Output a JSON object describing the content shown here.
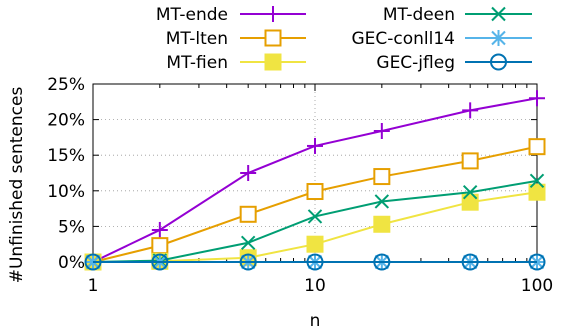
{
  "chart_data": {
    "type": "line",
    "title": "",
    "xlabel": "n",
    "ylabel": "#Unfinished sentences",
    "xscale": "log",
    "xlim": [
      1,
      100
    ],
    "ylim": [
      0,
      25
    ],
    "x_ticks": [
      1,
      10,
      100
    ],
    "x_tick_labels": [
      "1",
      "10",
      "100"
    ],
    "y_ticks": [
      0,
      5,
      10,
      15,
      20,
      25
    ],
    "y_tick_labels": [
      "0%",
      "5%",
      "10%",
      "15%",
      "20%",
      "25%"
    ],
    "grid": true,
    "legend_position": "top, above plot, two columns",
    "x": [
      1,
      2,
      5,
      10,
      20,
      50,
      100
    ],
    "series": [
      {
        "name": "MT-ende",
        "color": "#9400d3",
        "marker": "plus",
        "values": [
          0,
          4.5,
          12.5,
          16.3,
          18.4,
          21.3,
          23.0
        ]
      },
      {
        "name": "MT-lten",
        "color": "#e69f00",
        "marker": "open-square",
        "values": [
          0,
          2.3,
          6.7,
          9.9,
          12.0,
          14.2,
          16.2
        ]
      },
      {
        "name": "MT-fien",
        "color": "#f0e442",
        "marker": "filled-square",
        "values": [
          0,
          0.1,
          0.6,
          2.5,
          5.3,
          8.4,
          9.8
        ]
      },
      {
        "name": "MT-deen",
        "color": "#009e73",
        "marker": "x",
        "values": [
          0,
          0.2,
          2.7,
          6.4,
          8.5,
          9.8,
          11.4
        ]
      },
      {
        "name": "GEC-conll14",
        "color": "#56b4e9",
        "marker": "star",
        "values": [
          0,
          0,
          0,
          0,
          0,
          0,
          0
        ]
      },
      {
        "name": "GEC-jfleg",
        "color": "#0072b2",
        "marker": "open-circle",
        "values": [
          0,
          0,
          0,
          0,
          0,
          0,
          0
        ]
      }
    ]
  }
}
